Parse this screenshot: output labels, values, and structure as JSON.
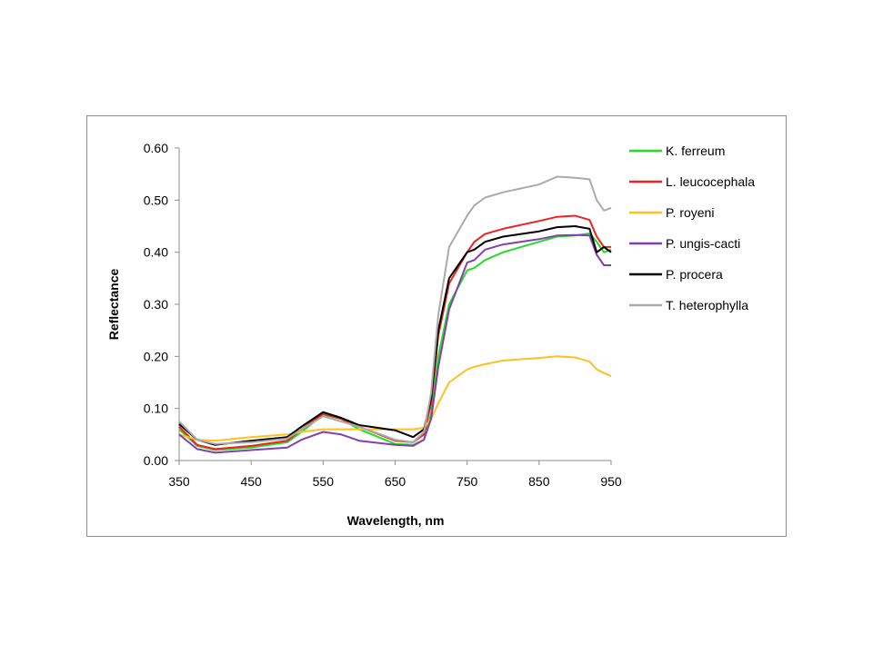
{
  "chart_data": {
    "type": "line",
    "title": "",
    "xlabel": "Wavelength, nm",
    "ylabel": "Reflectance",
    "xlim": [
      350,
      950
    ],
    "ylim": [
      0,
      0.6
    ],
    "x_ticks": [
      "350",
      "450",
      "550",
      "650",
      "750",
      "850",
      "950"
    ],
    "y_ticks": [
      "0.00",
      "0.10",
      "0.20",
      "0.30",
      "0.40",
      "0.50",
      "0.60"
    ],
    "grid": false,
    "legend_position": "right",
    "x": [
      350,
      375,
      400,
      450,
      500,
      520,
      550,
      575,
      600,
      650,
      675,
      690,
      700,
      710,
      725,
      750,
      760,
      775,
      800,
      850,
      875,
      900,
      920,
      930,
      940,
      950
    ],
    "series": [
      {
        "name": "K. ferreum",
        "color": "#22dd22",
        "values": [
          0.06,
          0.028,
          0.02,
          0.025,
          0.035,
          0.055,
          0.088,
          0.08,
          0.06,
          0.032,
          0.03,
          0.04,
          0.09,
          0.2,
          0.3,
          0.365,
          0.37,
          0.385,
          0.4,
          0.42,
          0.43,
          0.432,
          0.436,
          0.42,
          0.4,
          0.405
        ]
      },
      {
        "name": "L. leucocephala",
        "color": "#ee2222",
        "values": [
          0.065,
          0.03,
          0.022,
          0.028,
          0.038,
          0.06,
          0.09,
          0.08,
          0.065,
          0.038,
          0.035,
          0.05,
          0.11,
          0.24,
          0.34,
          0.4,
          0.42,
          0.435,
          0.445,
          0.46,
          0.468,
          0.47,
          0.462,
          0.43,
          0.41,
          0.41
        ]
      },
      {
        "name": "P. royeni",
        "color": "#ffc020",
        "values": [
          0.05,
          0.04,
          0.038,
          0.045,
          0.05,
          0.055,
          0.06,
          0.06,
          0.06,
          0.06,
          0.06,
          0.063,
          0.08,
          0.11,
          0.15,
          0.175,
          0.18,
          0.185,
          0.192,
          0.197,
          0.2,
          0.198,
          0.19,
          0.175,
          0.168,
          0.162
        ]
      },
      {
        "name": "P. ungis-cacti",
        "color": "#8040b0",
        "values": [
          0.05,
          0.022,
          0.015,
          0.02,
          0.025,
          0.04,
          0.055,
          0.05,
          0.038,
          0.03,
          0.028,
          0.04,
          0.08,
          0.18,
          0.29,
          0.38,
          0.385,
          0.405,
          0.415,
          0.425,
          0.432,
          0.433,
          0.432,
          0.395,
          0.375,
          0.375
        ]
      },
      {
        "name": "P. procera",
        "color": "#000000",
        "values": [
          0.07,
          0.04,
          0.03,
          0.038,
          0.045,
          0.065,
          0.093,
          0.082,
          0.068,
          0.058,
          0.045,
          0.06,
          0.12,
          0.25,
          0.35,
          0.4,
          0.405,
          0.42,
          0.43,
          0.44,
          0.448,
          0.45,
          0.445,
          0.4,
          0.41,
          0.4
        ]
      },
      {
        "name": "T. heterophylla",
        "color": "#aaaaaa",
        "values": [
          0.075,
          0.04,
          0.032,
          0.035,
          0.042,
          0.06,
          0.085,
          0.075,
          0.065,
          0.04,
          0.035,
          0.055,
          0.13,
          0.28,
          0.41,
          0.47,
          0.49,
          0.505,
          0.515,
          0.53,
          0.545,
          0.543,
          0.54,
          0.5,
          0.48,
          0.485
        ]
      }
    ]
  }
}
